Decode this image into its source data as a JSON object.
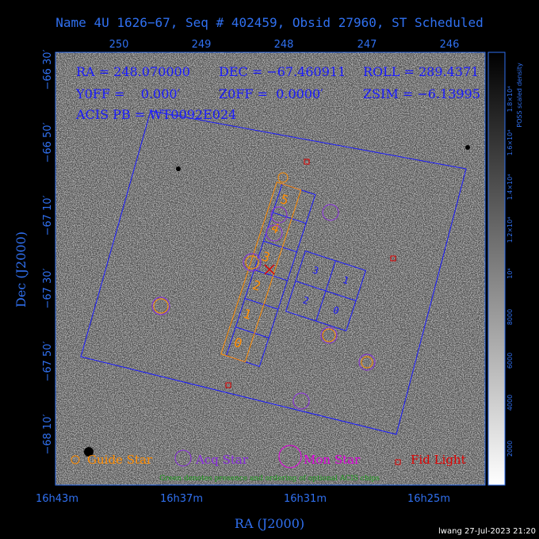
{
  "header": {
    "title": "Name 4U 1626−67, Seq # 402459, Obsid 27960, ST Scheduled"
  },
  "info": {
    "ra": "RA = 248.070000",
    "dec": "DEC = −67.460911",
    "roll": "ROLL = 289.4371",
    "yoff": "Y0FF =    0.000′",
    "zoff": "Z0FF =  0.0000′",
    "zsim": "ZSIM = −6.13995",
    "acis_pb": "ACIS PB = WT0092E024"
  },
  "top_axis": {
    "ticks": [
      "250",
      "249",
      "248",
      "247",
      "246"
    ]
  },
  "left_axis": {
    "label": "Dec (J2000)",
    "ticks": [
      "−66 30′",
      "−66 50′",
      "−67 10′",
      "−67 30′",
      "−67 50′",
      "−68 10′"
    ]
  },
  "bottom_axis": {
    "label": "RA (J2000)",
    "ticks": [
      "16h43m",
      "16h37m",
      "16h31m",
      "16h25m"
    ]
  },
  "acis_s_chips": [
    "0",
    "1",
    "2",
    "3",
    "4",
    "5"
  ],
  "acis_i_chips": [
    "3",
    "1",
    "2",
    "0"
  ],
  "legend": [
    "Guide Star",
    "Acq Star",
    "Mon Star",
    "Fid Light"
  ],
  "note": "Green denotes presence and ordering of optional ACIS chips",
  "colorbar": {
    "label": "POSS scaled density",
    "ticks": [
      "2000",
      "4000",
      "6000",
      "8000",
      "10⁴",
      "1.2×10⁴",
      "1.4×10⁴",
      "1.6×10⁴",
      "1.8×10⁴"
    ]
  },
  "footer": "lwang 27-Jul-2023 21:20"
}
